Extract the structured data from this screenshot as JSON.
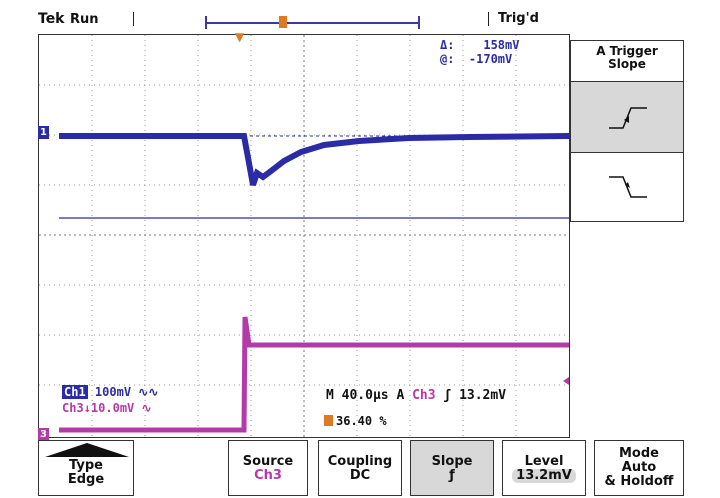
{
  "header": {
    "brand": "Tek",
    "run_state": "Run",
    "trigger_status": "Trig'd"
  },
  "measurements": {
    "delta_label": "Δ:",
    "delta_value": "158mV",
    "at_label": "@:",
    "at_value": "-170mV"
  },
  "channels": {
    "ch1_tag": "Ch1",
    "ch1_scale": "100mV",
    "ch1_coupling_icon": "~ac",
    "ch3_tag": "Ch3",
    "ch3_scale": "10.0mV",
    "ch1_marker": "1",
    "ch3_marker": "3"
  },
  "timebase": {
    "text": "M 40.0µs A",
    "source": "Ch3",
    "slope_glyph": "/",
    "level": "13.2mV",
    "trigger_position": "36.40 %"
  },
  "side_menu": {
    "title_line1": "A Trigger",
    "title_line2": "Slope",
    "options": [
      "rising-slope",
      "falling-slope"
    ]
  },
  "bottom_menu": {
    "type_label": "Type",
    "type_value": "Edge",
    "source_label": "Source",
    "source_value": "Ch3",
    "coupling_label": "Coupling",
    "coupling_value": "DC",
    "slope_label": "Slope",
    "slope_value": "ƒ",
    "level_label": "Level",
    "level_value": "13.2mV",
    "mode_label1": "Mode",
    "mode_label2": "Auto",
    "mode_label3": "& Holdoff"
  },
  "colors": {
    "ch1": "#2b2ba6",
    "ch3": "#b43aa8",
    "trigger": "#e07a20",
    "grid": "#9a9a9a"
  }
}
